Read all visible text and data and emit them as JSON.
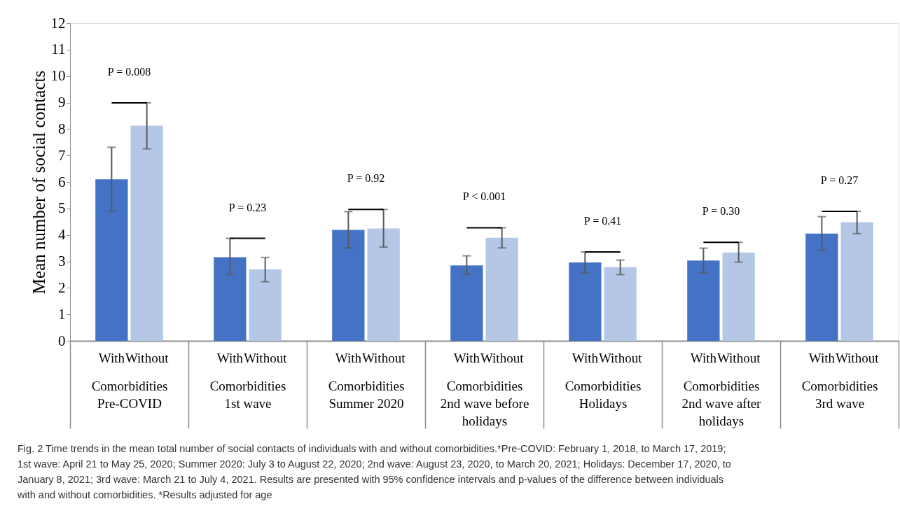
{
  "chart_data": {
    "type": "bar",
    "ylabel": "Mean number of social contacts",
    "categories": [
      "Comorbidities\nPre-COVID",
      "Comorbidities\n1st wave",
      "Comorbidities\nSummer 2020",
      "Comorbidities\n2nd wave before\nholidays",
      "Comorbidities\nHolidays",
      "Comorbidities\n2nd wave after\nholidays",
      "Comorbidities\n3rd wave"
    ],
    "series": [
      {
        "name": "With",
        "color": "#4472c4",
        "values": [
          6.1,
          3.16,
          4.19,
          2.85,
          2.96,
          3.03,
          4.05
        ],
        "errors": [
          [
            4.89,
            7.31
          ],
          [
            2.5,
            3.87
          ],
          [
            3.51,
            4.88
          ],
          [
            2.51,
            3.21
          ],
          [
            2.57,
            3.36
          ],
          [
            2.57,
            3.5
          ],
          [
            3.42,
            4.69
          ]
        ]
      },
      {
        "name": "Without",
        "color": "#b4c7e7",
        "values": [
          8.13,
          2.7,
          4.24,
          3.89,
          2.78,
          3.34,
          4.48
        ],
        "errors": [
          [
            7.25,
            8.99
          ],
          [
            2.23,
            3.15
          ],
          [
            3.54,
            4.96
          ],
          [
            3.51,
            4.27
          ],
          [
            2.5,
            3.05
          ],
          [
            2.97,
            3.72
          ],
          [
            4.05,
            4.89
          ]
        ]
      }
    ],
    "ylim": [
      0,
      12
    ],
    "yticks": [
      0,
      1,
      2,
      3,
      4,
      5,
      6,
      7,
      8,
      9,
      10,
      11,
      12
    ],
    "grid": false,
    "legend": false,
    "annotations": [
      "P = 0.008",
      "P = 0.23",
      "P = 0.92",
      "P < 0.001",
      "P = 0.41",
      "P = 0.30",
      "P = 0.27",
      "Fig. 2  Time trends in the mean total number of social contacts of individuals with and without comorbidities.*Pre-COVID: February 1, 2018, to March 17, 2019; 1st wave: April 21 to May 25, 2020; Summer 2020: July 3 to August 22, 2020; 2nd wave: August 23, 2020, to March 20, 2021; Holidays: December 17, 2020, to January 8, 2021; 3rd wave: March 21 to July 4, 2021. Results are presented with 95% confidence intervals and p-values of the difference between individuals with and without comorbidities. *Results adjusted for age"
    ]
  }
}
